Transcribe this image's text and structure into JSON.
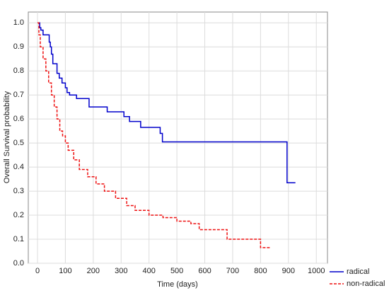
{
  "chart_data": {
    "type": "step",
    "xlabel": "Time (days)",
    "ylabel": "Overall Survival probability",
    "xlim": [
      -33,
      1040
    ],
    "ylim": [
      0,
      1.045
    ],
    "xticks": [
      0,
      100,
      200,
      300,
      400,
      500,
      600,
      700,
      800,
      900,
      1000
    ],
    "yticks": [
      {
        "value": 0,
        "label": "0.0"
      },
      0.1,
      0.2,
      0.3,
      0.4,
      0.5,
      0.6,
      0.7,
      0.8,
      0.9,
      {
        "value": 1,
        "label": "1.0"
      }
    ],
    "grid": true,
    "legend": "bottom-right",
    "series": [
      {
        "name": "radical",
        "color": "#0000cc",
        "dash": false,
        "x": [
          0,
          8,
          12,
          20,
          42,
          46,
          50,
          55,
          70,
          78,
          88,
          100,
          106,
          115,
          140,
          185,
          250,
          310,
          330,
          370,
          440,
          448,
          895,
          925
        ],
        "values": [
          1.0,
          0.98,
          0.97,
          0.95,
          0.92,
          0.9,
          0.87,
          0.83,
          0.79,
          0.77,
          0.75,
          0.73,
          0.71,
          0.7,
          0.685,
          0.65,
          0.63,
          0.61,
          0.59,
          0.565,
          0.54,
          0.505,
          0.335,
          0.335
        ]
      },
      {
        "name": "non-radical",
        "color": "#ee1111",
        "dash": true,
        "x": [
          0,
          5,
          10,
          20,
          30,
          40,
          50,
          60,
          70,
          80,
          90,
          100,
          110,
          130,
          150,
          180,
          210,
          240,
          280,
          320,
          350,
          400,
          450,
          500,
          550,
          580,
          620,
          680,
          750,
          800,
          835
        ],
        "values": [
          1.0,
          0.95,
          0.9,
          0.85,
          0.8,
          0.75,
          0.7,
          0.65,
          0.6,
          0.55,
          0.53,
          0.5,
          0.47,
          0.43,
          0.39,
          0.36,
          0.33,
          0.3,
          0.27,
          0.24,
          0.22,
          0.2,
          0.19,
          0.175,
          0.165,
          0.14,
          0.14,
          0.1,
          0.1,
          0.065,
          0.065
        ]
      }
    ]
  }
}
